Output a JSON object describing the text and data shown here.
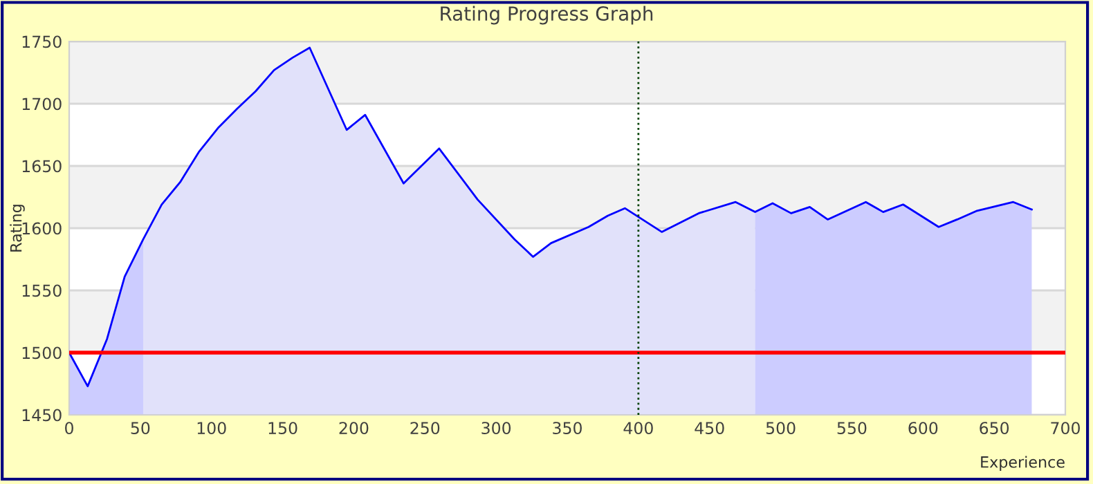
{
  "chart_data": {
    "type": "line",
    "title": "Rating Progress Graph",
    "xlabel": "Experience",
    "ylabel": "Rating",
    "xlim": [
      0,
      700
    ],
    "xticks": [
      0,
      50,
      100,
      150,
      200,
      250,
      300,
      350,
      400,
      450,
      500,
      550,
      600,
      650,
      700
    ],
    "ylim": [
      1450,
      1750
    ],
    "yticks": [
      1450,
      1500,
      1550,
      1600,
      1650,
      1700,
      1750
    ],
    "grid": "y",
    "legend": false,
    "series": [
      {
        "type": "area",
        "color": "#ccccff",
        "x": [
          0,
          13,
          26.6,
          39,
          52
        ],
        "values": [
          1500,
          1473,
          1511,
          1561,
          1591
        ]
      },
      {
        "type": "area",
        "color": "#e1e1fa",
        "x": [
          52,
          65,
          78,
          91,
          105,
          118,
          131,
          144,
          157,
          169,
          195,
          208,
          235,
          260,
          287,
          313,
          326,
          338.6,
          365,
          378.5,
          390.5,
          416.4,
          442.4,
          468.3,
          482
        ],
        "values": [
          1591,
          1619,
          1637,
          1661,
          1681,
          1696,
          1710,
          1727,
          1737,
          1745,
          1679,
          1691,
          1636,
          1664,
          1623,
          1591,
          1577,
          1588,
          1601,
          1610,
          1616,
          1597,
          1612,
          1621,
          1613
        ]
      },
      {
        "type": "area",
        "color": "#ccccff",
        "x": [
          482,
          494.3,
          507.3,
          520.4,
          533,
          559.8,
          572,
          586,
          611,
          624,
          638,
          663.4,
          676.4
        ],
        "values": [
          1613,
          1620,
          1612,
          1617,
          1607,
          1621,
          1613,
          1619,
          1601,
          1607,
          1614,
          1621,
          1615
        ]
      },
      {
        "color": "#0000ff",
        "x": [
          0,
          13,
          26.6,
          39,
          52,
          65,
          78,
          91,
          105,
          118,
          131,
          144,
          157,
          169,
          195,
          208,
          235,
          260,
          287,
          313,
          326,
          338.6,
          365,
          378.5,
          390.5,
          416.4,
          442.4,
          468.3,
          482,
          494.3,
          507.3,
          520.4,
          533,
          559.8,
          572,
          586,
          611,
          624,
          638,
          663.4,
          676.4
        ],
        "values": [
          1500,
          1473,
          1511,
          1561,
          1591,
          1619,
          1637,
          1661,
          1681,
          1696,
          1710,
          1727,
          1737,
          1745,
          1679,
          1691,
          1636,
          1664,
          1623,
          1591,
          1577,
          1588,
          1601,
          1610,
          1616,
          1597,
          1612,
          1621,
          1613,
          1620,
          1612,
          1617,
          1607,
          1621,
          1613,
          1619,
          1601,
          1607,
          1614,
          1621,
          1615
        ]
      }
    ],
    "ref_lines": [
      {
        "axis": "y",
        "value": 1500,
        "color": "#ff0000",
        "line_style": "solid"
      },
      {
        "axis": "x",
        "value": 400,
        "color": "#004000",
        "line_style": "dotted"
      }
    ]
  }
}
